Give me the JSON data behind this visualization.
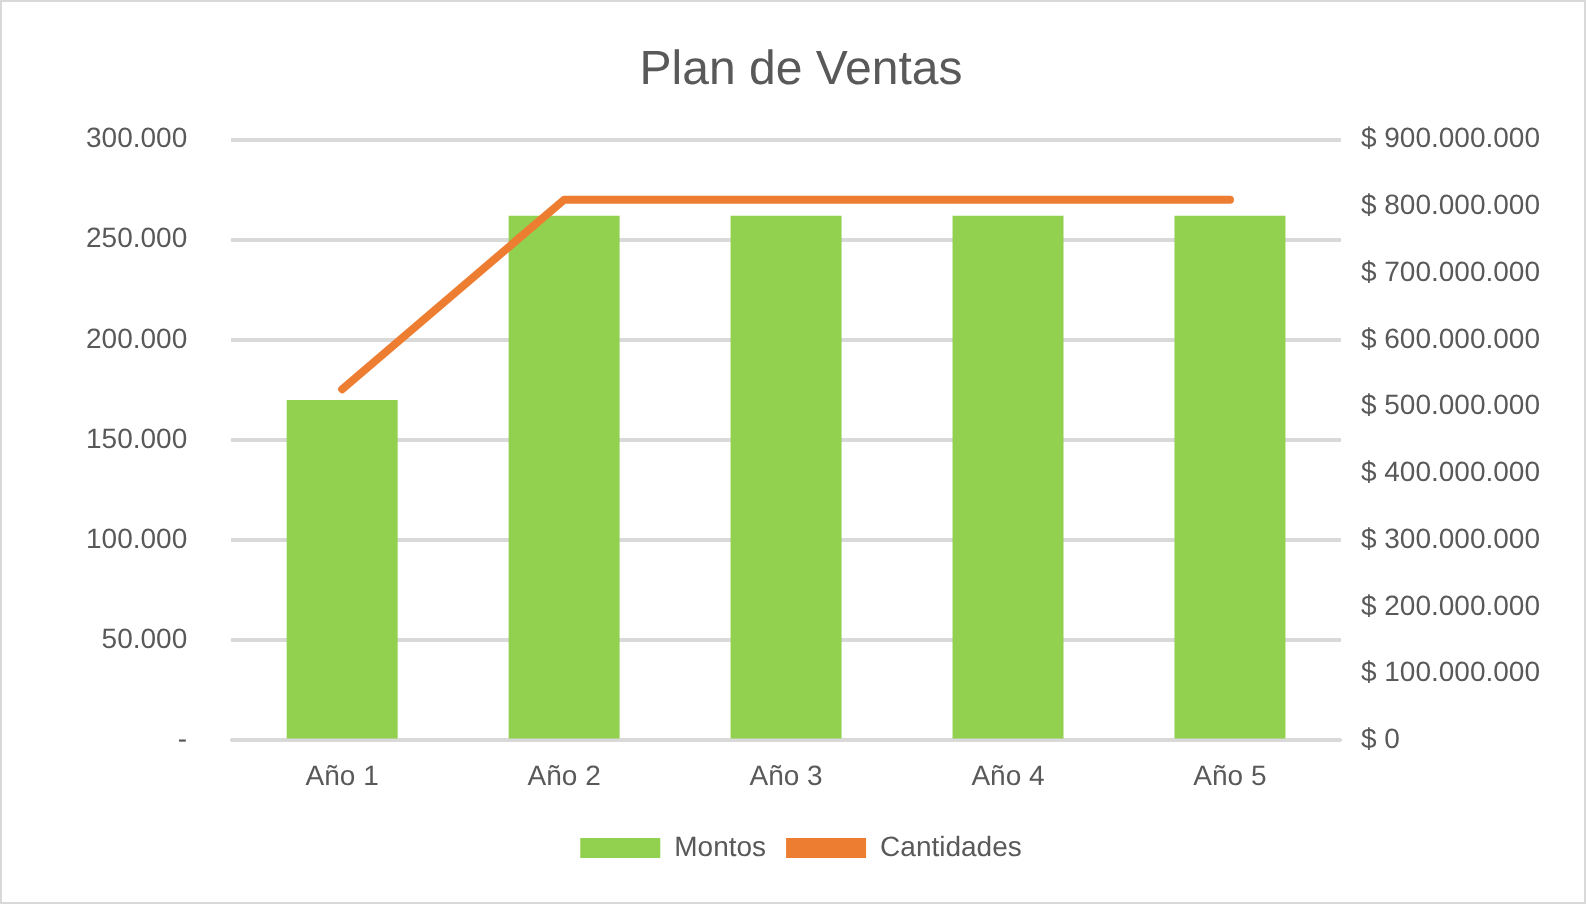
{
  "chart_data": {
    "type": "bar",
    "title": "Plan de Ventas",
    "categories": [
      "Año 1",
      "Año 2",
      "Año 3",
      "Año 4",
      "Año 5"
    ],
    "series": [
      {
        "name": "Montos",
        "color": "#92d050",
        "values": [
          170000,
          262000,
          262000,
          262000,
          262000
        ]
      },
      {
        "name": "Cantidades",
        "type": "line",
        "axis": "y2",
        "color": "#ed7d31",
        "values": [
          526000000,
          810000000,
          810000000,
          810000000,
          810000000
        ]
      }
    ],
    "ylim": [
      0,
      300000
    ],
    "yticks": [
      {
        "value": 0,
        "label": "-"
      },
      {
        "value": 50000,
        "label": "50.000"
      },
      {
        "value": 100000,
        "label": "100.000"
      },
      {
        "value": 150000,
        "label": "150.000"
      },
      {
        "value": 200000,
        "label": "200.000"
      },
      {
        "value": 250000,
        "label": "250.000"
      },
      {
        "value": 300000,
        "label": "300.000"
      }
    ],
    "y2lim": [
      0,
      900000000
    ],
    "y2ticks": [
      {
        "value": 0,
        "label": "$ 0"
      },
      {
        "value": 100000000,
        "label": "$ 100.000.000"
      },
      {
        "value": 200000000,
        "label": "$ 200.000.000"
      },
      {
        "value": 300000000,
        "label": "$ 300.000.000"
      },
      {
        "value": 400000000,
        "label": "$ 400.000.000"
      },
      {
        "value": 500000000,
        "label": "$ 500.000.000"
      },
      {
        "value": 600000000,
        "label": "$ 600.000.000"
      },
      {
        "value": 700000000,
        "label": "$ 700.000.000"
      },
      {
        "value": 800000000,
        "label": "$ 800.000.000"
      },
      {
        "value": 900000000,
        "label": "$ 900.000.000"
      }
    ],
    "grid": "y",
    "legend": "bottom",
    "marker": "none",
    "line_style": "solid"
  }
}
